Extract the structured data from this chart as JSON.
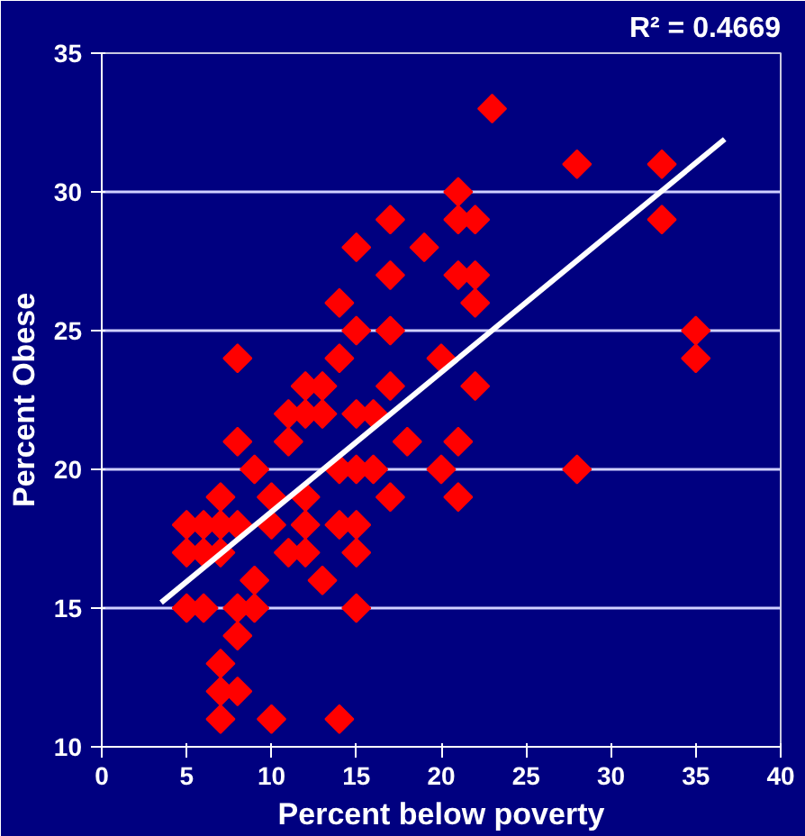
{
  "chart_data": {
    "type": "scatter",
    "xlabel": "Percent below poverty",
    "ylabel": "Percent Obese",
    "annotations": [
      "R² = 0.4669"
    ],
    "xlim": [
      0,
      40
    ],
    "xticks": [
      0,
      5,
      10,
      15,
      20,
      25,
      30,
      35,
      40
    ],
    "ylim": [
      10,
      35
    ],
    "yticks": [
      10,
      15,
      20,
      25,
      30,
      35
    ],
    "grid": "y",
    "series": [
      {
        "marker": "diamond",
        "color": "#ff0000",
        "x": [
          14,
          8,
          8,
          9,
          11,
          11,
          12,
          13,
          12,
          13,
          14,
          7,
          10,
          12,
          5,
          6,
          7,
          8,
          10,
          12,
          14,
          5,
          6,
          7,
          11,
          12,
          9,
          13,
          5,
          6,
          8,
          9,
          8,
          7,
          7,
          8,
          7,
          10,
          14,
          23,
          21,
          21,
          22,
          17,
          15,
          19,
          17,
          21,
          22,
          22,
          15,
          17,
          14,
          20,
          17,
          22,
          15,
          16,
          18,
          21,
          15,
          16,
          20,
          17,
          21,
          15,
          15,
          15,
          28,
          33,
          33,
          35,
          35,
          28
        ],
        "values": [
          26,
          24,
          21,
          20,
          22,
          21,
          23,
          23,
          22,
          22,
          20,
          19,
          19,
          19,
          18,
          18,
          18,
          18,
          18,
          18,
          18,
          17,
          17,
          17,
          17,
          17,
          16,
          16,
          15,
          15,
          15,
          15,
          14,
          13,
          12,
          12,
          11,
          11,
          11,
          33,
          30,
          29,
          29,
          29,
          28,
          28,
          27,
          27,
          27,
          26,
          25,
          25,
          24,
          24,
          23,
          23,
          22,
          22,
          21,
          21,
          20,
          20,
          20,
          19,
          19,
          18,
          17,
          15,
          31,
          31,
          29,
          25,
          24,
          20
        ]
      },
      {
        "type": "line",
        "color": "#ffffff",
        "x": [
          3.5,
          36.7
        ],
        "values": [
          15.2,
          31.9
        ]
      }
    ]
  }
}
